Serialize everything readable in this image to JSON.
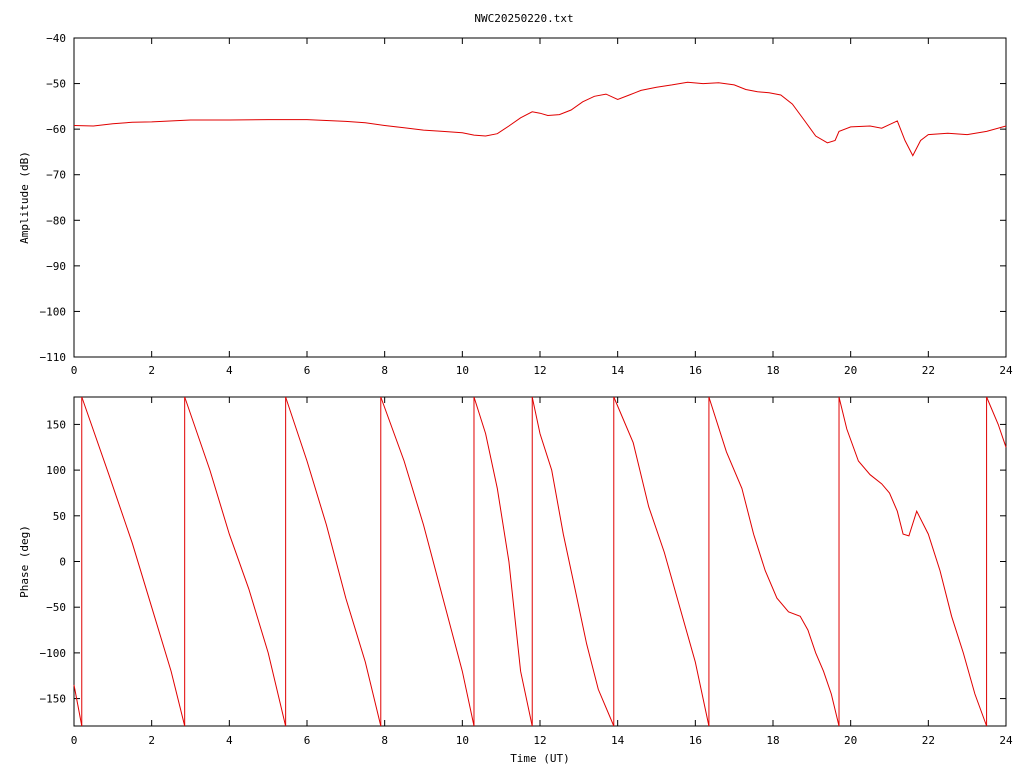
{
  "title": "NWC20250220.txt",
  "colors": {
    "series": "#e00000",
    "axes": "#000000",
    "background": "#ffffff"
  },
  "chart_data": [
    {
      "type": "line",
      "ylabel": "Amplitude (dB)",
      "xlabel": "",
      "xlim": [
        0,
        24
      ],
      "ylim": [
        -110,
        -40
      ],
      "xticks": [
        0,
        2,
        4,
        6,
        8,
        10,
        12,
        14,
        16,
        18,
        20,
        22,
        24
      ],
      "yticks": [
        -110,
        -100,
        -90,
        -80,
        -70,
        -60,
        -50,
        -40
      ],
      "grid": false,
      "series": [
        {
          "x": [
            0,
            0.5,
            1,
            1.5,
            2,
            3,
            4,
            5,
            6,
            7,
            7.5,
            8,
            8.5,
            9,
            9.5,
            10,
            10.3,
            10.6,
            10.9,
            11.2,
            11.5,
            11.8,
            12.0,
            12.2,
            12.5,
            12.8,
            13.1,
            13.4,
            13.7,
            14.0,
            14.3,
            14.6,
            15.0,
            15.4,
            15.8,
            16.2,
            16.6,
            17.0,
            17.3,
            17.6,
            17.9,
            18.2,
            18.5,
            18.8,
            19.1,
            19.4,
            19.6,
            19.7,
            20.0,
            20.5,
            20.8,
            21.0,
            21.2,
            21.4,
            21.6,
            21.8,
            22.0,
            22.5,
            23.0,
            23.5,
            24.0
          ],
          "y": [
            -59.2,
            -59.3,
            -58.8,
            -58.5,
            -58.4,
            -58.0,
            -58.0,
            -57.9,
            -57.9,
            -58.3,
            -58.6,
            -59.2,
            -59.7,
            -60.2,
            -60.5,
            -60.8,
            -61.3,
            -61.5,
            -61.0,
            -59.3,
            -57.5,
            -56.2,
            -56.5,
            -57.0,
            -56.8,
            -55.8,
            -54.0,
            -52.8,
            -52.3,
            -53.5,
            -52.5,
            -51.5,
            -50.8,
            -50.3,
            -49.7,
            -50.0,
            -49.8,
            -50.3,
            -51.3,
            -51.8,
            -52.0,
            -52.5,
            -54.5,
            -58.0,
            -61.5,
            -63.0,
            -62.5,
            -60.5,
            -59.5,
            -59.3,
            -59.8,
            -59.0,
            -58.2,
            -62.5,
            -65.8,
            -62.5,
            -61.2,
            -60.9,
            -61.2,
            -60.5,
            -59.3
          ]
        }
      ]
    },
    {
      "type": "line",
      "ylabel": "Phase (deg)",
      "xlabel": "Time (UT)",
      "xlim": [
        0,
        24
      ],
      "ylim": [
        -180,
        180
      ],
      "xticks": [
        0,
        2,
        4,
        6,
        8,
        10,
        12,
        14,
        16,
        18,
        20,
        22,
        24
      ],
      "yticks": [
        -150,
        -100,
        -50,
        0,
        50,
        100,
        150
      ],
      "grid": false,
      "series": [
        {
          "x": [
            0.0,
            0.2
          ],
          "y": [
            -135,
            -180
          ]
        },
        {
          "x": [
            0.2,
            0.9,
            1.5,
            2.0,
            2.5,
            2.85
          ],
          "y": [
            180,
            95,
            20,
            -50,
            -120,
            -180
          ]
        },
        {
          "x": [
            2.85,
            3.5,
            4.0,
            4.5,
            5.0,
            5.45
          ],
          "y": [
            180,
            100,
            30,
            -30,
            -100,
            -180
          ]
        },
        {
          "x": [
            5.45,
            6.0,
            6.5,
            7.0,
            7.5,
            7.9
          ],
          "y": [
            180,
            110,
            40,
            -40,
            -110,
            -180
          ]
        },
        {
          "x": [
            7.9,
            8.5,
            9.0,
            9.5,
            10.0,
            10.3
          ],
          "y": [
            180,
            110,
            40,
            -40,
            -120,
            -180
          ]
        },
        {
          "x": [
            10.3,
            10.6,
            10.9,
            11.2,
            11.5,
            11.8
          ],
          "y": [
            180,
            140,
            80,
            0,
            -120,
            -180
          ]
        },
        {
          "x": [
            11.8,
            12.0,
            12.3,
            12.6,
            12.9,
            13.2,
            13.5,
            13.9
          ],
          "y": [
            180,
            140,
            100,
            30,
            -30,
            -90,
            -140,
            -180
          ]
        },
        {
          "x": [
            13.9,
            14.4,
            14.8,
            15.2,
            15.6,
            16.0,
            16.35
          ],
          "y": [
            180,
            130,
            60,
            10,
            -50,
            -110,
            -180
          ]
        },
        {
          "x": [
            16.35,
            16.8,
            17.2,
            17.5,
            17.8,
            18.1,
            18.4,
            18.7,
            18.9,
            19.1,
            19.3,
            19.5,
            19.7
          ],
          "y": [
            180,
            120,
            80,
            30,
            -10,
            -40,
            -55,
            -60,
            -75,
            -100,
            -120,
            -145,
            -180
          ]
        },
        {
          "x": [
            19.7,
            19.9,
            20.2,
            20.5,
            20.8,
            21.0,
            21.2,
            21.35,
            21.5,
            21.7,
            22.0,
            22.3,
            22.6,
            22.9,
            23.2,
            23.5
          ],
          "y": [
            180,
            145,
            110,
            95,
            85,
            75,
            55,
            30,
            28,
            55,
            30,
            -10,
            -60,
            -100,
            -145,
            -180
          ]
        },
        {
          "x": [
            23.5,
            23.8,
            24.0
          ],
          "y": [
            180,
            150,
            125
          ]
        }
      ]
    }
  ]
}
